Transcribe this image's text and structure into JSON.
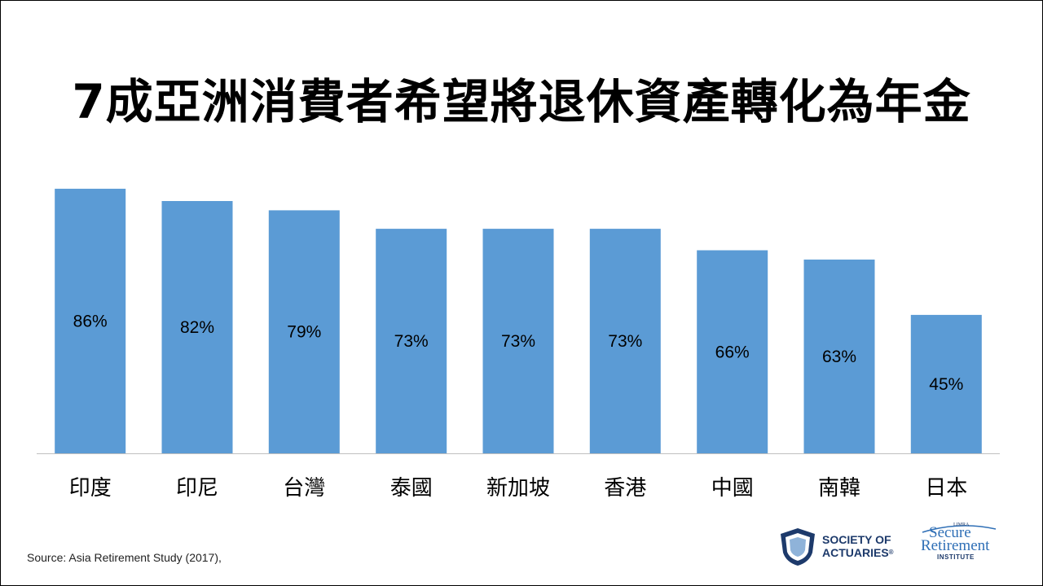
{
  "title": "7成亞洲消費者希望將退休資產轉化為年金",
  "source": "Source: Asia Retirement Study (2017),",
  "logos": {
    "soa_line1": "SOCIETY OF",
    "soa_line2": "ACTUARIES",
    "sri_limra": "LIMRA",
    "sri_line1": "Secure",
    "sri_line2": "Retirement",
    "sri_line3": "INSTITUTE"
  },
  "colors": {
    "bar": "#5b9bd5",
    "axis": "#bfbfbf",
    "text": "#000000",
    "soa_shield": "#1d3a6b",
    "sri_blue": "#2f6fb6"
  },
  "chart_data": {
    "type": "bar",
    "title": "7成亞洲消費者希望將退休資產轉化為年金",
    "xlabel": "",
    "ylabel": "",
    "categories": [
      "印度",
      "印尼",
      "台灣",
      "泰國",
      "新加坡",
      "香港",
      "中國",
      "南韓",
      "日本"
    ],
    "values": [
      86,
      82,
      79,
      73,
      73,
      73,
      66,
      63,
      45
    ],
    "data_labels": [
      "86%",
      "82%",
      "79%",
      "73%",
      "73%",
      "73%",
      "66%",
      "63%",
      "45%"
    ],
    "ylim": [
      0,
      100
    ],
    "grid": false,
    "legend": "none"
  }
}
